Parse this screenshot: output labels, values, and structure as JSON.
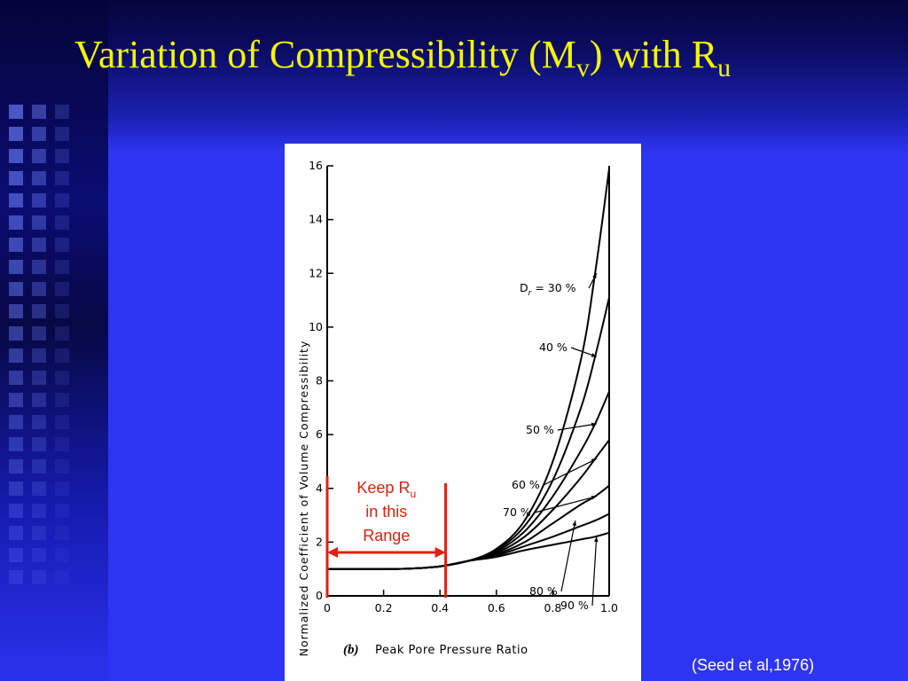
{
  "slide": {
    "title_main": "Variation of Compressibility (M",
    "title_sub1": "v",
    "title_mid": ") with R",
    "title_sub2": "u",
    "citation": "(Seed et al,1976)"
  },
  "colors": {
    "background": "#2e35f2",
    "title": "#f5f500",
    "annotation": "#e02010",
    "curve": "#000000"
  },
  "chart_data": {
    "type": "line",
    "panel_label": "(b)",
    "xlabel": "Peak Pore Pressure Ratio",
    "ylabel": "Normalized Coefficient of Volume Compressibility",
    "xlim": [
      0,
      1.0
    ],
    "ylim": [
      0,
      16
    ],
    "x_ticks": [
      0,
      0.2,
      0.4,
      0.6,
      0.8,
      1.0
    ],
    "x_tick_labels": [
      "0",
      "0.2",
      "0.4",
      "0.6",
      "0.8",
      "1.0"
    ],
    "y_ticks": [
      0,
      2,
      4,
      6,
      8,
      10,
      12,
      14,
      16
    ],
    "y_tick_labels": [
      "0",
      "2",
      "4",
      "6",
      "8",
      "10",
      "12",
      "14",
      "16"
    ],
    "grid": false,
    "series": [
      {
        "name": "Dr = 30 %",
        "label": "Dr = 30 %",
        "x": [
          0,
          0.1,
          0.2,
          0.3,
          0.4,
          0.5,
          0.6,
          0.7,
          0.8,
          0.9,
          0.95,
          1.0
        ],
        "y": [
          1.0,
          1.0,
          1.0,
          1.02,
          1.1,
          1.3,
          1.75,
          2.8,
          5.0,
          8.8,
          12.0,
          15.9
        ]
      },
      {
        "name": "40 %",
        "label": "40 %",
        "x": [
          0,
          0.1,
          0.2,
          0.3,
          0.4,
          0.5,
          0.6,
          0.7,
          0.8,
          0.9,
          0.95,
          1.0
        ],
        "y": [
          1.0,
          1.0,
          1.0,
          1.02,
          1.1,
          1.3,
          1.7,
          2.6,
          4.3,
          7.0,
          8.9,
          11.1
        ]
      },
      {
        "name": "50 %",
        "label": "50 %",
        "x": [
          0,
          0.1,
          0.2,
          0.3,
          0.4,
          0.5,
          0.6,
          0.7,
          0.8,
          0.9,
          0.95,
          1.0
        ],
        "y": [
          1.0,
          1.0,
          1.0,
          1.02,
          1.1,
          1.3,
          1.65,
          2.4,
          3.7,
          5.4,
          6.4,
          7.6
        ]
      },
      {
        "name": "60 %",
        "label": "60 %",
        "x": [
          0,
          0.1,
          0.2,
          0.3,
          0.4,
          0.5,
          0.6,
          0.7,
          0.8,
          0.9,
          0.95,
          1.0
        ],
        "y": [
          1.0,
          1.0,
          1.0,
          1.02,
          1.1,
          1.3,
          1.6,
          2.2,
          3.2,
          4.4,
          5.1,
          5.8
        ]
      },
      {
        "name": "70 %",
        "label": "70 %",
        "x": [
          0,
          0.1,
          0.2,
          0.3,
          0.4,
          0.5,
          0.6,
          0.7,
          0.8,
          0.9,
          0.95,
          1.0
        ],
        "y": [
          1.0,
          1.0,
          1.0,
          1.02,
          1.1,
          1.3,
          1.55,
          2.0,
          2.7,
          3.4,
          3.7,
          4.1
        ]
      },
      {
        "name": "80 %",
        "label": "80 %",
        "x": [
          0,
          0.1,
          0.2,
          0.3,
          0.4,
          0.5,
          0.6,
          0.7,
          0.8,
          0.9,
          0.95,
          1.0
        ],
        "y": [
          1.0,
          1.0,
          1.0,
          1.02,
          1.1,
          1.3,
          1.5,
          1.85,
          2.2,
          2.6,
          2.8,
          3.05
        ]
      },
      {
        "name": "90 %",
        "label": "90 %",
        "x": [
          0,
          0.1,
          0.2,
          0.3,
          0.4,
          0.5,
          0.6,
          0.7,
          0.8,
          0.9,
          0.95,
          1.0
        ],
        "y": [
          1.0,
          1.0,
          1.0,
          1.02,
          1.1,
          1.3,
          1.45,
          1.7,
          1.9,
          2.1,
          2.2,
          2.35
        ]
      }
    ],
    "annotation": {
      "line1": "Keep R",
      "line1_sub": "u",
      "line2": "in this",
      "line3": "Range",
      "x_range": [
        0,
        0.42
      ]
    }
  }
}
